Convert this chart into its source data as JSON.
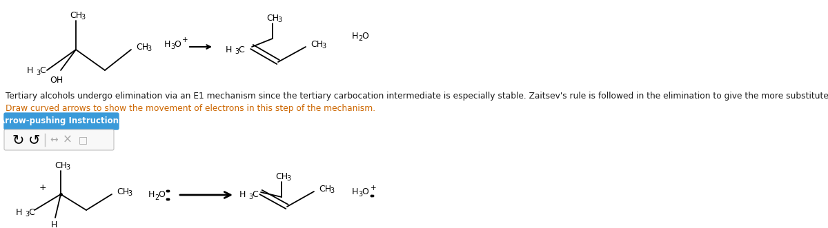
{
  "bg_color": "#ffffff",
  "text_color": "#1a1a1a",
  "orange_color": "#cc6600",
  "btn_color": "#3a9ad9",
  "btn_text": "Arrow-pushing Instructions",
  "btn_text_color": "#ffffff",
  "line1": "Tertiary alcohols undergo elimination via an E1 mechanism since the tertiary carbocation intermediate is especially stable. Zaitsev's rule is followed in the elimination to give the more substituted alkene as the major product.",
  "line2": "Draw curved arrows to show the movement of electrons in this step of the mechanism."
}
